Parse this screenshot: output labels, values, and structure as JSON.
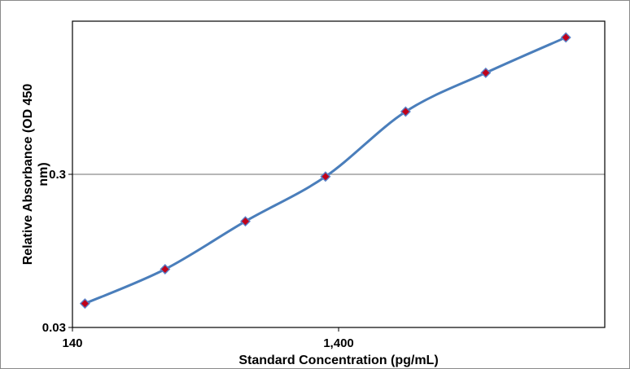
{
  "chart_data": {
    "type": "line",
    "xlabel": "Standard Concentration (pg/mL)",
    "ylabel": "Relative Absorbance (OD 450 nm)",
    "x_scale": "log",
    "y_scale": "log",
    "xlim": [
      140,
      14000
    ],
    "ylim": [
      0.03,
      3.0
    ],
    "x_ticks": [
      {
        "value": 140,
        "label": "140"
      },
      {
        "value": 1400,
        "label": "1,400"
      }
    ],
    "y_ticks": [
      {
        "value": 0.03,
        "label": "0.03"
      },
      {
        "value": 0.3,
        "label": "0.3"
      }
    ],
    "grid": "horizontal",
    "series": [
      {
        "x": [
          156,
          312,
          625,
          1250,
          2500,
          5000,
          10000
        ],
        "y": [
          0.043,
          0.072,
          0.148,
          0.29,
          0.77,
          1.38,
          2.35
        ]
      }
    ],
    "colors": {
      "line": "#4a7ebb",
      "marker_fill": "#c0001a",
      "marker_edge": "#5b82c8",
      "grid": "#8c8c8c",
      "axis": "#000000"
    }
  }
}
